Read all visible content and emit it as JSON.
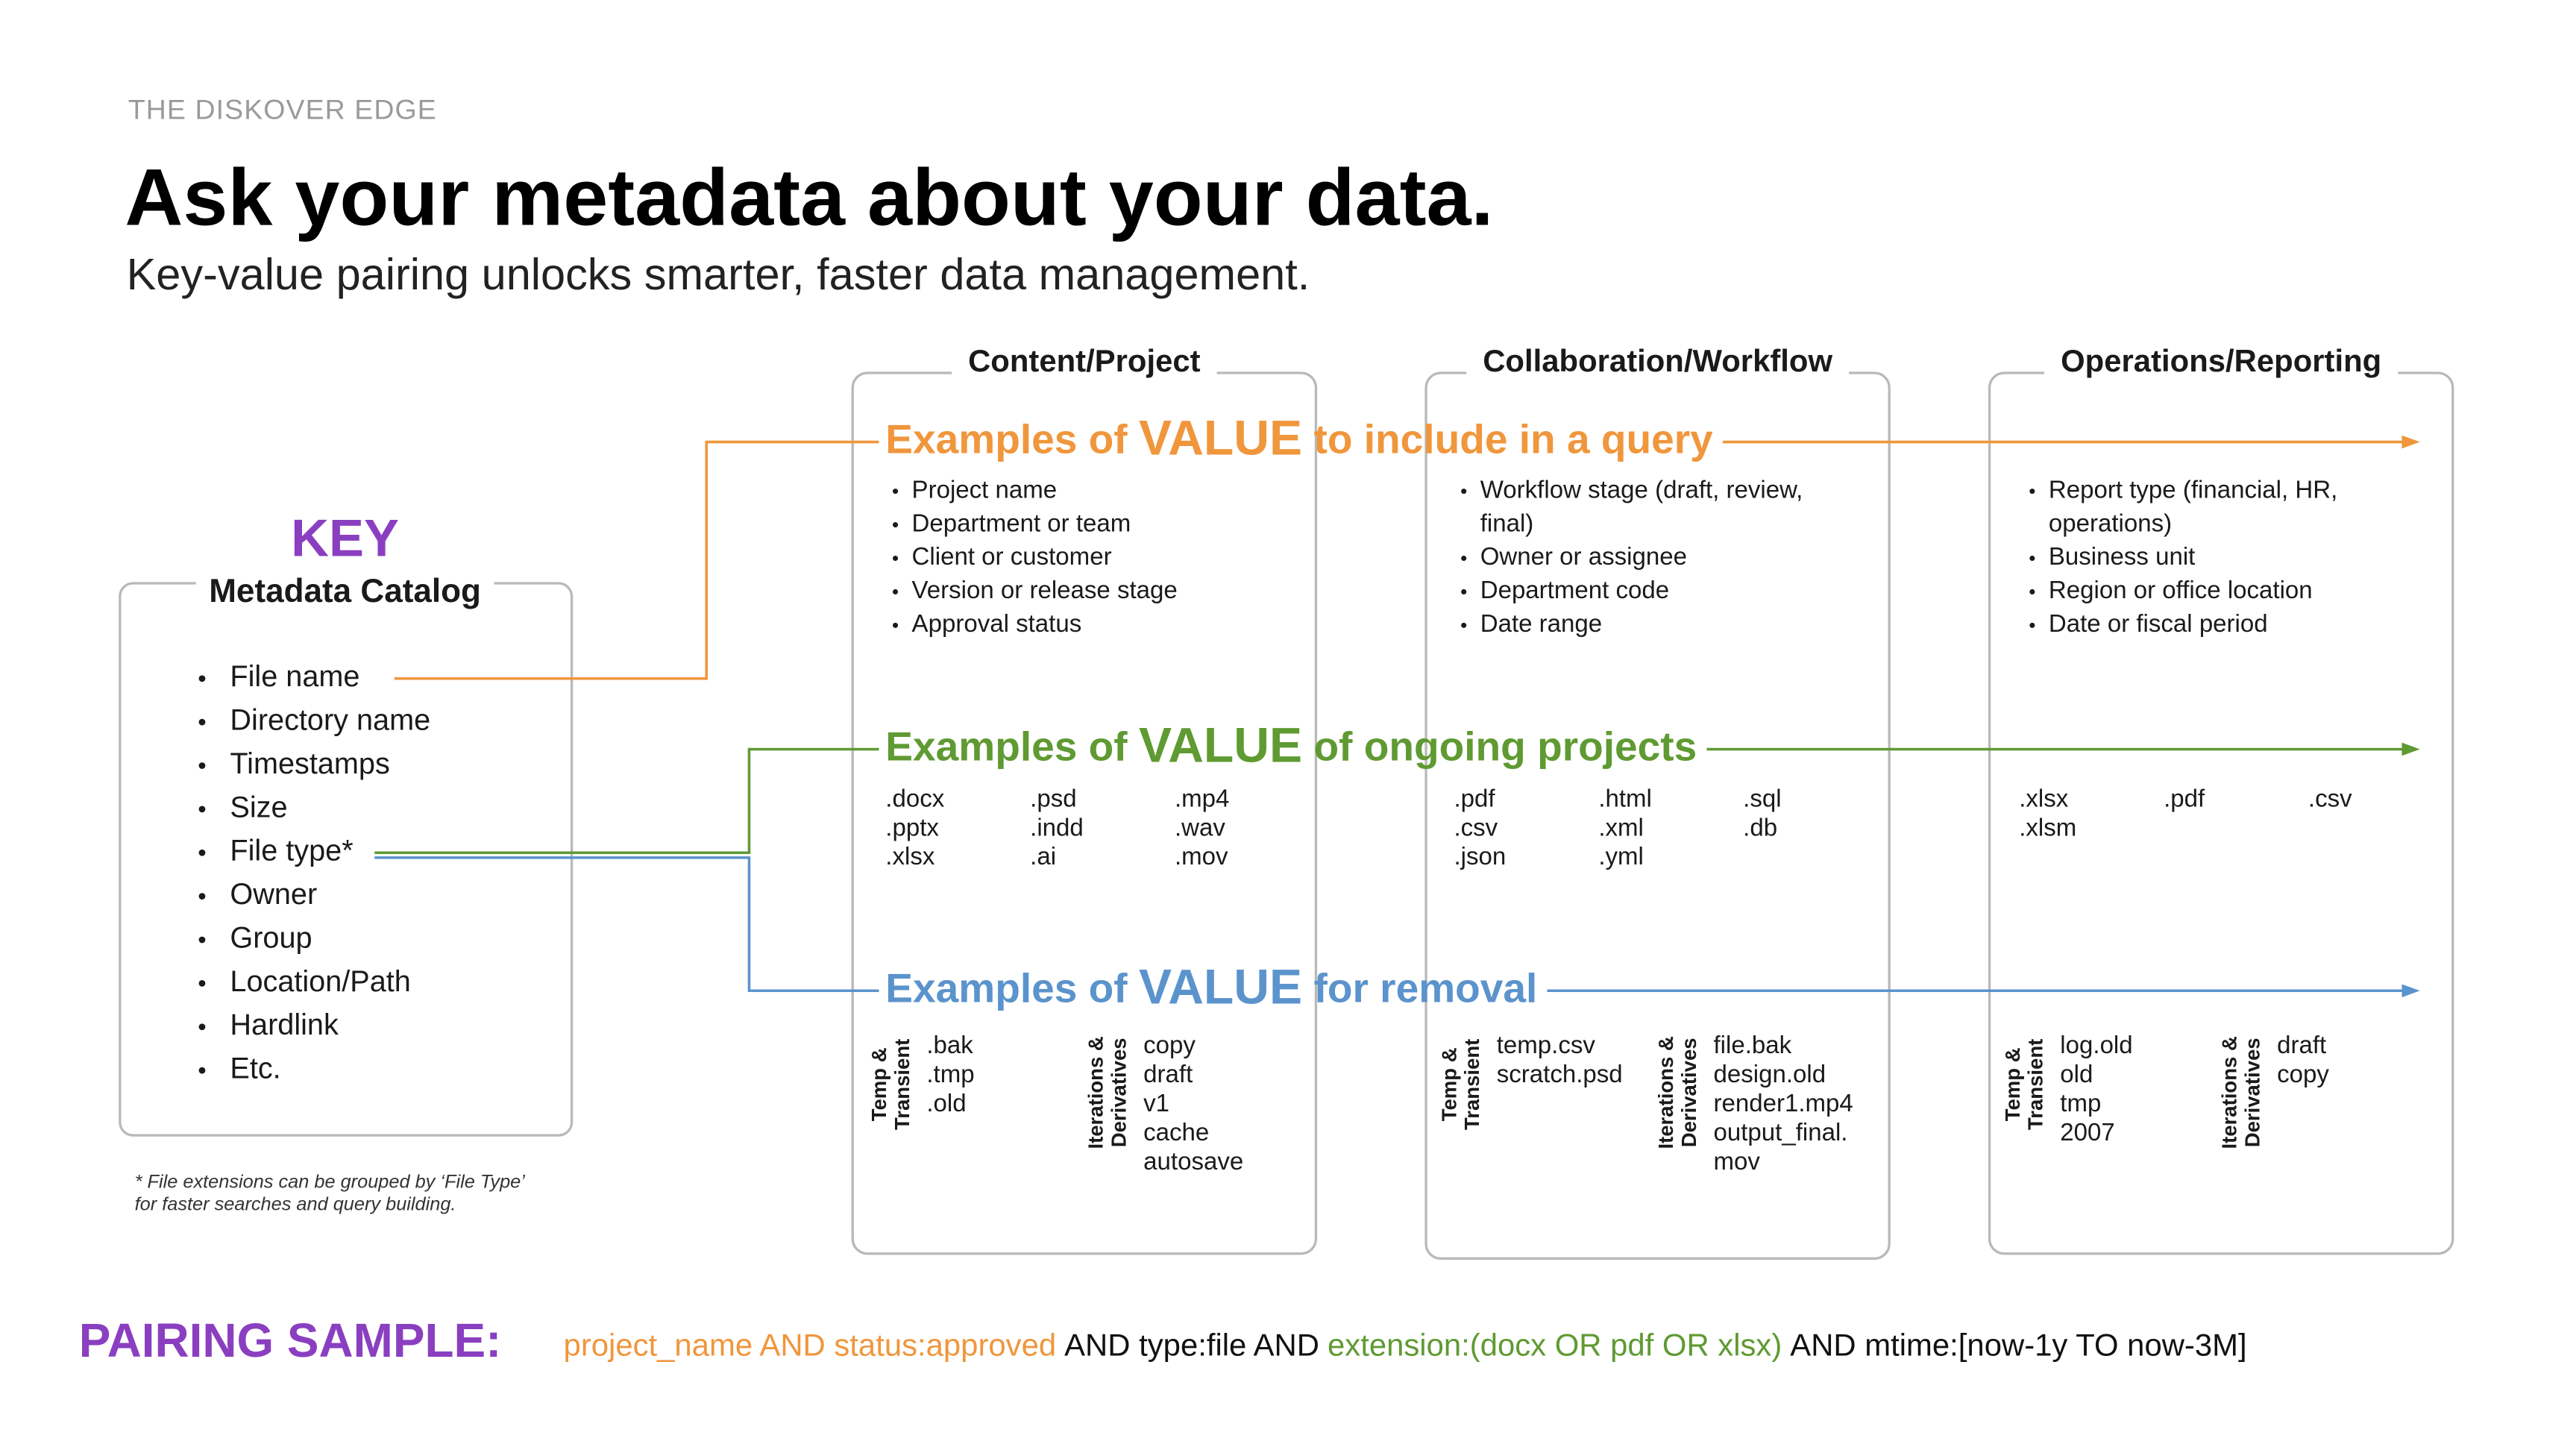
{
  "eyebrow": "THE DISKOVER EDGE",
  "title": "Ask your metadata about your data.",
  "subtitle": "Key-value pairing unlocks smarter, faster data management.",
  "key": {
    "label": "KEY",
    "heading": "Metadata Catalog",
    "items": [
      "File name",
      "Directory name",
      "Timestamps",
      "Size",
      "File type*",
      "Owner",
      "Group",
      "Location/Path",
      "Hardlink",
      "Etc."
    ],
    "footnote": [
      "* File extensions can be grouped by ‘File Type’",
      "for faster searches and query building."
    ]
  },
  "columns": [
    "Content/Project",
    "Collaboration/Workflow",
    "Operations/Reporting"
  ],
  "rows": [
    {
      "prefix": "Examples of",
      "emphasis": "VALUE",
      "suffix": "to include in a query",
      "color": "#f0963c",
      "cells": [
        [
          [
            "Project name"
          ],
          [
            "Department or team"
          ],
          [
            "Client or customer"
          ],
          [
            "Version or release stage"
          ],
          [
            "Approval status"
          ]
        ],
        [
          [
            "Workflow stage (draft, review,",
            "final)"
          ],
          [
            "Owner or assignee"
          ],
          [
            "Department code"
          ],
          [
            "Date range"
          ]
        ],
        [
          [
            "Report type (financial, HR,",
            "operations)"
          ],
          [
            "Business unit"
          ],
          [
            "Region or office location"
          ],
          [
            "Date or fiscal period"
          ]
        ]
      ]
    },
    {
      "prefix": "Examples of",
      "emphasis": "VALUE",
      "suffix": "of ongoing projects",
      "color": "#5f9a32",
      "cells": [
        [
          [
            ".docx",
            ".pptx",
            ".xlsx"
          ],
          [
            ".psd",
            ".indd",
            ".ai"
          ],
          [
            ".mp4",
            ".wav",
            ".mov"
          ]
        ],
        [
          [
            ".pdf",
            ".csv",
            ".json"
          ],
          [
            ".html",
            ".xml",
            ".yml"
          ],
          [
            ".sql",
            ".db"
          ]
        ],
        [
          [
            ".xlsx",
            ".xlsm"
          ],
          [
            ".pdf"
          ],
          [
            ".csv"
          ]
        ]
      ]
    },
    {
      "prefix": "Examples of",
      "emphasis": "VALUE",
      "suffix": "for removal",
      "color": "#5b93cc",
      "cells": [
        [
          {
            "label": [
              "Temp &",
              "Transient"
            ],
            "items": [
              ".bak",
              ".tmp",
              ".old"
            ]
          },
          {
            "label": [
              "Iterations &",
              "Derivatives"
            ],
            "items": [
              "copy",
              "draft",
              "v1",
              "cache",
              "autosave"
            ]
          }
        ],
        [
          {
            "label": [
              "Temp &",
              "Transient"
            ],
            "items": [
              "temp.csv",
              "scratch.psd"
            ]
          },
          {
            "label": [
              "Iterations &",
              "Derivatives"
            ],
            "items": [
              "file.bak",
              "design.old",
              "render1.mp4",
              "output_final.",
              "mov"
            ]
          }
        ],
        [
          {
            "label": [
              "Temp &",
              "Transient"
            ],
            "items": [
              "log.old",
              "old",
              "tmp",
              "2007"
            ]
          },
          {
            "label": [
              "Iterations &",
              "Derivatives"
            ],
            "items": [
              "draft",
              "copy"
            ]
          }
        ]
      ]
    }
  ],
  "pairing": {
    "label": "PAIRING SAMPLE:",
    "segments": [
      {
        "text": "project_name AND status:approved",
        "color": "#f0963c"
      },
      {
        "text": "AND type:file AND",
        "color": "#111111"
      },
      {
        "text": "extension:(docx OR pdf OR xlsx)",
        "color": "#5f9a32"
      },
      {
        "text": "AND mtime:[now-1y TO now-3M]",
        "color": "#111111"
      }
    ]
  }
}
